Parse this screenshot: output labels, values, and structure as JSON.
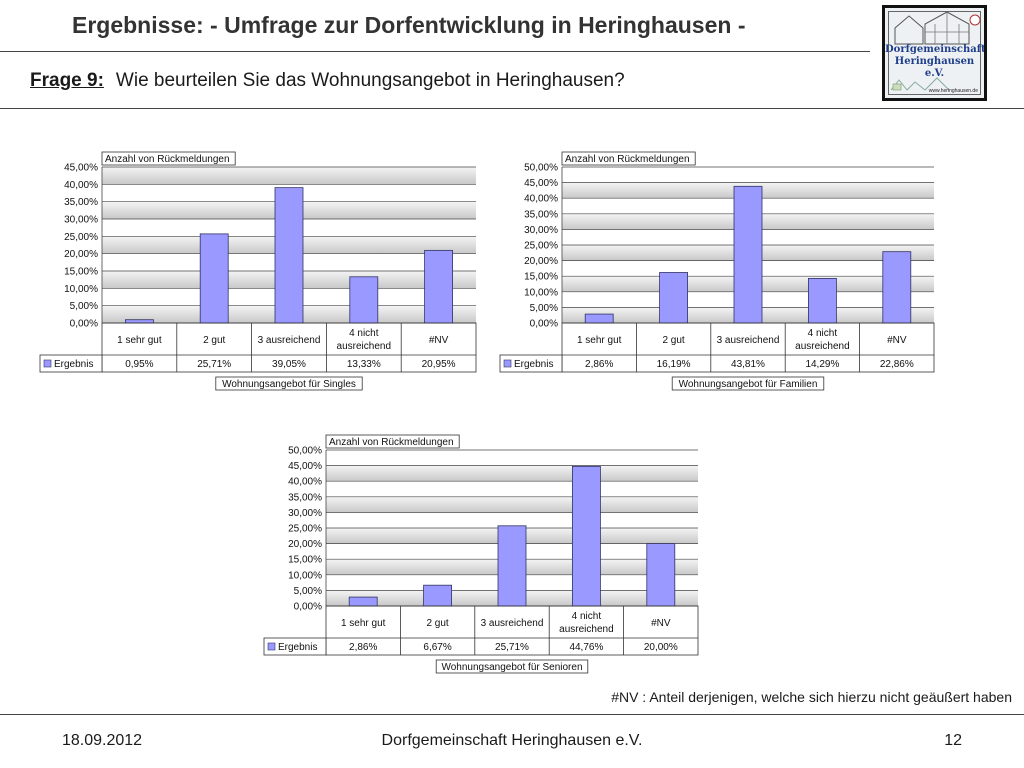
{
  "header": {
    "title": "Ergebnisse: - Umfrage zur Dorfentwicklung in Heringhausen -",
    "question_label": "Frage 9:",
    "question_text": "Wie beurteilen Sie das Wohnungsangebot in Heringhausen?"
  },
  "logo": {
    "line1": "Dorfgemeinschaft",
    "line2": "Heringhausen e.V.",
    "website": "www.heringhausen.de"
  },
  "footnote": "#NV :  Anteil derjenigen, welche sich hierzu nicht geäußert haben",
  "footer": {
    "date": "18.09.2012",
    "organization": "Dorfgemeinschaft Heringhausen e.V.",
    "page": "12"
  },
  "colors": {
    "bar_fill": "#9999ff",
    "bar_stroke": "#333366",
    "plot_band": "#c8c8c8"
  },
  "chart_data": [
    {
      "type": "bar",
      "field_label": "Anzahl von Rückmeldungen",
      "categories": [
        "1 sehr gut",
        "2 gut",
        "3 ausreichend",
        "4 nicht ausreichend",
        "#NV"
      ],
      "series": [
        {
          "name": "Ergebnis",
          "values": [
            0.95,
            25.71,
            39.05,
            13.33,
            20.95
          ]
        }
      ],
      "value_labels": [
        "0,95%",
        "25,71%",
        "39,05%",
        "13,33%",
        "20,95%"
      ],
      "ylim": [
        0,
        45
      ],
      "ytick_labels": [
        "0,00%",
        "5,00%",
        "10,00%",
        "15,00%",
        "20,00%",
        "25,00%",
        "30,00%",
        "35,00%",
        "40,00%",
        "45,00%"
      ],
      "xlabel": "Wohnungsangebot für Singles"
    },
    {
      "type": "bar",
      "field_label": "Anzahl von Rückmeldungen",
      "categories": [
        "1 sehr gut",
        "2 gut",
        "3 ausreichend",
        "4 nicht ausreichend",
        "#NV"
      ],
      "series": [
        {
          "name": "Ergebnis",
          "values": [
            2.86,
            16.19,
            43.81,
            14.29,
            22.86
          ]
        }
      ],
      "value_labels": [
        "2,86%",
        "16,19%",
        "43,81%",
        "14,29%",
        "22,86%"
      ],
      "ylim": [
        0,
        50
      ],
      "ytick_labels": [
        "0,00%",
        "5,00%",
        "10,00%",
        "15,00%",
        "20,00%",
        "25,00%",
        "30,00%",
        "35,00%",
        "40,00%",
        "45,00%",
        "50,00%"
      ],
      "xlabel": "Wohnungsangebot für Familien"
    },
    {
      "type": "bar",
      "field_label": "Anzahl von Rückmeldungen",
      "categories": [
        "1 sehr gut",
        "2 gut",
        "3 ausreichend",
        "4 nicht ausreichend",
        "#NV"
      ],
      "series": [
        {
          "name": "Ergebnis",
          "values": [
            2.86,
            6.67,
            25.71,
            44.76,
            20.0
          ]
        }
      ],
      "value_labels": [
        "2,86%",
        "6,67%",
        "25,71%",
        "44,76%",
        "20,00%"
      ],
      "ylim": [
        0,
        50
      ],
      "ytick_labels": [
        "0,00%",
        "5,00%",
        "10,00%",
        "15,00%",
        "20,00%",
        "25,00%",
        "30,00%",
        "35,00%",
        "40,00%",
        "45,00%",
        "50,00%"
      ],
      "xlabel": "Wohnungsangebot für Senioren"
    }
  ]
}
